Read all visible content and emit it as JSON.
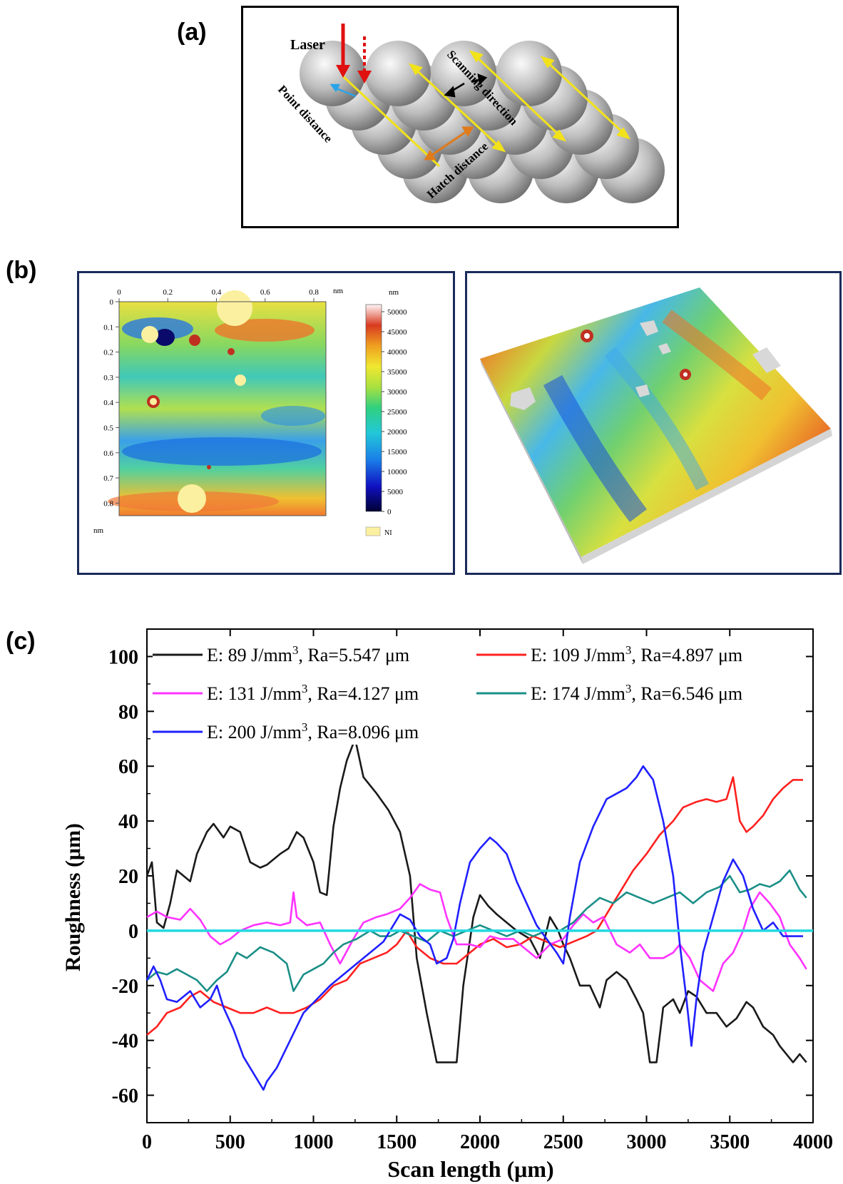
{
  "panels": {
    "a": {
      "letter": "(a)",
      "labels": {
        "laser": "Laser",
        "scanning_direction": "Scanning direction",
        "point_distance": "Point distance",
        "hatch_distance": "Hatch distance"
      }
    },
    "b": {
      "letter": "(b)",
      "x_ticks": [
        "0",
        "0.2",
        "0.4",
        "0.6",
        "0.8"
      ],
      "x_unit": "nm",
      "y_ticks": [
        "0",
        "0.1",
        "0.2",
        "0.3",
        "0.4",
        "0.5",
        "0.6",
        "0.7",
        "0.8"
      ],
      "y_unit": "nm",
      "colorbar_unit": "nm",
      "colorbar_ticks": [
        "50000",
        "45000",
        "40000",
        "35000",
        "30000",
        "25000",
        "20000",
        "15000",
        "10000",
        "5000",
        "0"
      ],
      "ni_label": "NI"
    },
    "c": {
      "letter": "(c)"
    }
  },
  "colors": {
    "black_series": "#1a1a1a",
    "red_series": "#ff2020",
    "magenta_series": "#ff33ff",
    "teal_series": "#1a8f87",
    "blue_series": "#2020ff",
    "zero_line": "#22d8e0"
  },
  "chart_data": {
    "type": "line",
    "xlabel": "Scan length (μm)",
    "ylabel": "Roughness (μm)",
    "xlim": [
      0,
      4000
    ],
    "ylim": [
      -70,
      110
    ],
    "x_ticks": [
      0,
      500,
      1000,
      1500,
      2000,
      2500,
      3000,
      3500,
      4000
    ],
    "y_ticks": [
      -60,
      -40,
      -20,
      0,
      20,
      40,
      60,
      80,
      100
    ],
    "legend_placement": "top",
    "reference_line": {
      "y": 0,
      "color": "#22d8e0"
    },
    "series": [
      {
        "name": "E: 89 J/mm3, Ra=5.547 μm",
        "legend": {
          "pre": "E: 89 J/mm",
          "sup": "3",
          "post": ", Ra=5.547 μm"
        },
        "color": "#1a1a1a",
        "x": [
          0,
          30,
          60,
          100,
          140,
          180,
          260,
          300,
          360,
          400,
          460,
          500,
          560,
          620,
          680,
          720,
          800,
          850,
          900,
          940,
          1000,
          1040,
          1080,
          1120,
          1160,
          1200,
          1250,
          1300,
          1380,
          1450,
          1520,
          1580,
          1620,
          1680,
          1740,
          1780,
          1860,
          1900,
          1960,
          2000,
          2050,
          2100,
          2160,
          2220,
          2300,
          2360,
          2420,
          2470,
          2500,
          2540,
          2600,
          2660,
          2720,
          2760,
          2820,
          2880,
          2940,
          2980,
          3020,
          3060,
          3100,
          3160,
          3200,
          3250,
          3300,
          3360,
          3420,
          3480,
          3540,
          3600,
          3640,
          3700,
          3760,
          3800,
          3880,
          3920,
          3960
        ],
        "y": [
          20,
          25,
          3,
          1,
          10,
          22,
          18,
          28,
          36,
          39,
          34,
          38,
          36,
          25,
          23,
          24,
          28,
          30,
          36,
          34,
          25,
          14,
          13,
          38,
          52,
          62,
          70,
          56,
          50,
          44,
          36,
          20,
          -10,
          -30,
          -48,
          -48,
          -48,
          -20,
          5,
          13,
          9,
          6,
          3,
          0,
          -3,
          -10,
          5,
          0,
          -5,
          -10,
          -20,
          -20,
          -28,
          -18,
          -15,
          -18,
          -25,
          -30,
          -48,
          -48,
          -28,
          -25,
          -30,
          -22,
          -24,
          -30,
          -30,
          -35,
          -32,
          -26,
          -28,
          -35,
          -38,
          -42,
          -48,
          -45,
          -48
        ]
      },
      {
        "name": "E: 109 J/mm3, Ra=4.897 μm",
        "legend": {
          "pre": "E: 109 J/mm",
          "sup": "3",
          "post": ", Ra=4.897 μm"
        },
        "color": "#ff2020",
        "x": [
          0,
          60,
          120,
          200,
          260,
          320,
          400,
          480,
          560,
          640,
          720,
          800,
          880,
          960,
          1040,
          1120,
          1200,
          1280,
          1360,
          1440,
          1500,
          1560,
          1620,
          1700,
          1780,
          1860,
          1940,
          2000,
          2080,
          2160,
          2240,
          2320,
          2400,
          2480,
          2560,
          2640,
          2700,
          2780,
          2850,
          2920,
          3000,
          3080,
          3160,
          3220,
          3300,
          3360,
          3420,
          3480,
          3520,
          3560,
          3600,
          3640,
          3700,
          3760,
          3820,
          3880,
          3940
        ],
        "y": [
          -38,
          -35,
          -30,
          -28,
          -24,
          -22,
          -26,
          -28,
          -30,
          -30,
          -28,
          -30,
          -30,
          -28,
          -25,
          -20,
          -18,
          -12,
          -10,
          -8,
          -5,
          0,
          -6,
          -10,
          -12,
          -12,
          -8,
          -5,
          -3,
          -6,
          -5,
          -2,
          -4,
          -6,
          -4,
          -2,
          0,
          8,
          15,
          22,
          28,
          35,
          40,
          45,
          47,
          48,
          47,
          48,
          56,
          40,
          36,
          38,
          42,
          48,
          52,
          55,
          55
        ]
      },
      {
        "name": "E: 131 J/mm3, Ra=4.127 μm",
        "legend": {
          "pre": "E: 131 J/mm",
          "sup": "3",
          "post": ", Ra=4.127 μm"
        },
        "color": "#ff33ff",
        "x": [
          0,
          60,
          120,
          200,
          260,
          320,
          380,
          440,
          500,
          560,
          640,
          720,
          800,
          860,
          880,
          900,
          960,
          1040,
          1100,
          1160,
          1240,
          1300,
          1380,
          1440,
          1520,
          1580,
          1640,
          1700,
          1760,
          1800,
          1860,
          1940,
          2000,
          2060,
          2120,
          2200,
          2260,
          2340,
          2420,
          2500,
          2560,
          2620,
          2680,
          2740,
          2820,
          2900,
          2960,
          3020,
          3100,
          3160,
          3200,
          3260,
          3320,
          3400,
          3460,
          3520,
          3580,
          3620,
          3680,
          3740,
          3800,
          3860,
          3920,
          3960
        ],
        "y": [
          5,
          7,
          5,
          4,
          8,
          4,
          -2,
          -5,
          -3,
          0,
          2,
          3,
          2,
          3,
          14,
          5,
          2,
          3,
          -5,
          -12,
          -3,
          3,
          5,
          6,
          8,
          12,
          17,
          15,
          14,
          5,
          -5,
          -5,
          -6,
          -2,
          -3,
          -3,
          -6,
          -10,
          -5,
          -3,
          2,
          6,
          3,
          5,
          -5,
          -8,
          -5,
          -10,
          -10,
          -8,
          -5,
          -10,
          -18,
          -22,
          -12,
          -8,
          0,
          8,
          14,
          10,
          5,
          -5,
          -10,
          -14
        ]
      },
      {
        "name": "E: 174 J/mm3, Ra=6.546 μm",
        "legend": {
          "pre": "E: 174 J/mm",
          "sup": "3",
          "post": ", Ra=6.546 μm"
        },
        "color": "#1a8f87",
        "x": [
          0,
          60,
          120,
          180,
          240,
          300,
          360,
          420,
          480,
          540,
          600,
          680,
          760,
          840,
          880,
          940,
          1000,
          1060,
          1120,
          1180,
          1260,
          1340,
          1400,
          1460,
          1520,
          1600,
          1680,
          1760,
          1840,
          1920,
          2000,
          2080,
          2160,
          2240,
          2320,
          2400,
          2480,
          2560,
          2640,
          2720,
          2800,
          2880,
          2960,
          3040,
          3120,
          3200,
          3280,
          3360,
          3440,
          3500,
          3560,
          3620,
          3680,
          3740,
          3800,
          3860,
          3920,
          3960
        ],
        "y": [
          -18,
          -15,
          -16,
          -14,
          -16,
          -18,
          -22,
          -18,
          -15,
          -8,
          -10,
          -6,
          -8,
          -12,
          -22,
          -16,
          -14,
          -12,
          -8,
          -5,
          -3,
          0,
          -2,
          -2,
          0,
          -2,
          -4,
          0,
          -2,
          0,
          2,
          0,
          -2,
          0,
          -2,
          0,
          0,
          3,
          8,
          12,
          10,
          14,
          12,
          10,
          12,
          14,
          10,
          14,
          16,
          20,
          14,
          15,
          17,
          16,
          18,
          22,
          15,
          12
        ]
      },
      {
        "name": "E: 200 J/mm3, Ra=8.096 μm",
        "legend": {
          "pre": "E: 200 J/mm",
          "sup": "3",
          "post": ", Ra=8.096 μm"
        },
        "color": "#2020ff",
        "x": [
          0,
          40,
          80,
          120,
          180,
          260,
          320,
          380,
          420,
          460,
          520,
          580,
          640,
          700,
          720,
          780,
          860,
          940,
          1020,
          1100,
          1180,
          1260,
          1340,
          1420,
          1480,
          1520,
          1580,
          1640,
          1700,
          1740,
          1800,
          1840,
          1880,
          1940,
          2000,
          2060,
          2100,
          2160,
          2220,
          2280,
          2340,
          2400,
          2460,
          2500,
          2540,
          2600,
          2680,
          2760,
          2820,
          2880,
          2940,
          2980,
          3040,
          3100,
          3160,
          3200,
          3240,
          3270,
          3300,
          3340,
          3400,
          3460,
          3520,
          3580,
          3640,
          3700,
          3760,
          3820,
          3880,
          3940
        ],
        "y": [
          -18,
          -13,
          -18,
          -25,
          -26,
          -22,
          -28,
          -25,
          -20,
          -28,
          -36,
          -46,
          -52,
          -58,
          -55,
          -50,
          -40,
          -30,
          -25,
          -20,
          -16,
          -12,
          -8,
          -4,
          2,
          6,
          4,
          -2,
          -5,
          -12,
          -10,
          -3,
          10,
          25,
          30,
          34,
          32,
          28,
          18,
          10,
          2,
          -3,
          -8,
          -12,
          5,
          25,
          38,
          48,
          50,
          52,
          56,
          60,
          55,
          40,
          20,
          -5,
          -25,
          -42,
          -25,
          -8,
          5,
          18,
          26,
          20,
          8,
          0,
          3,
          -2,
          -2,
          -2
        ]
      }
    ]
  }
}
